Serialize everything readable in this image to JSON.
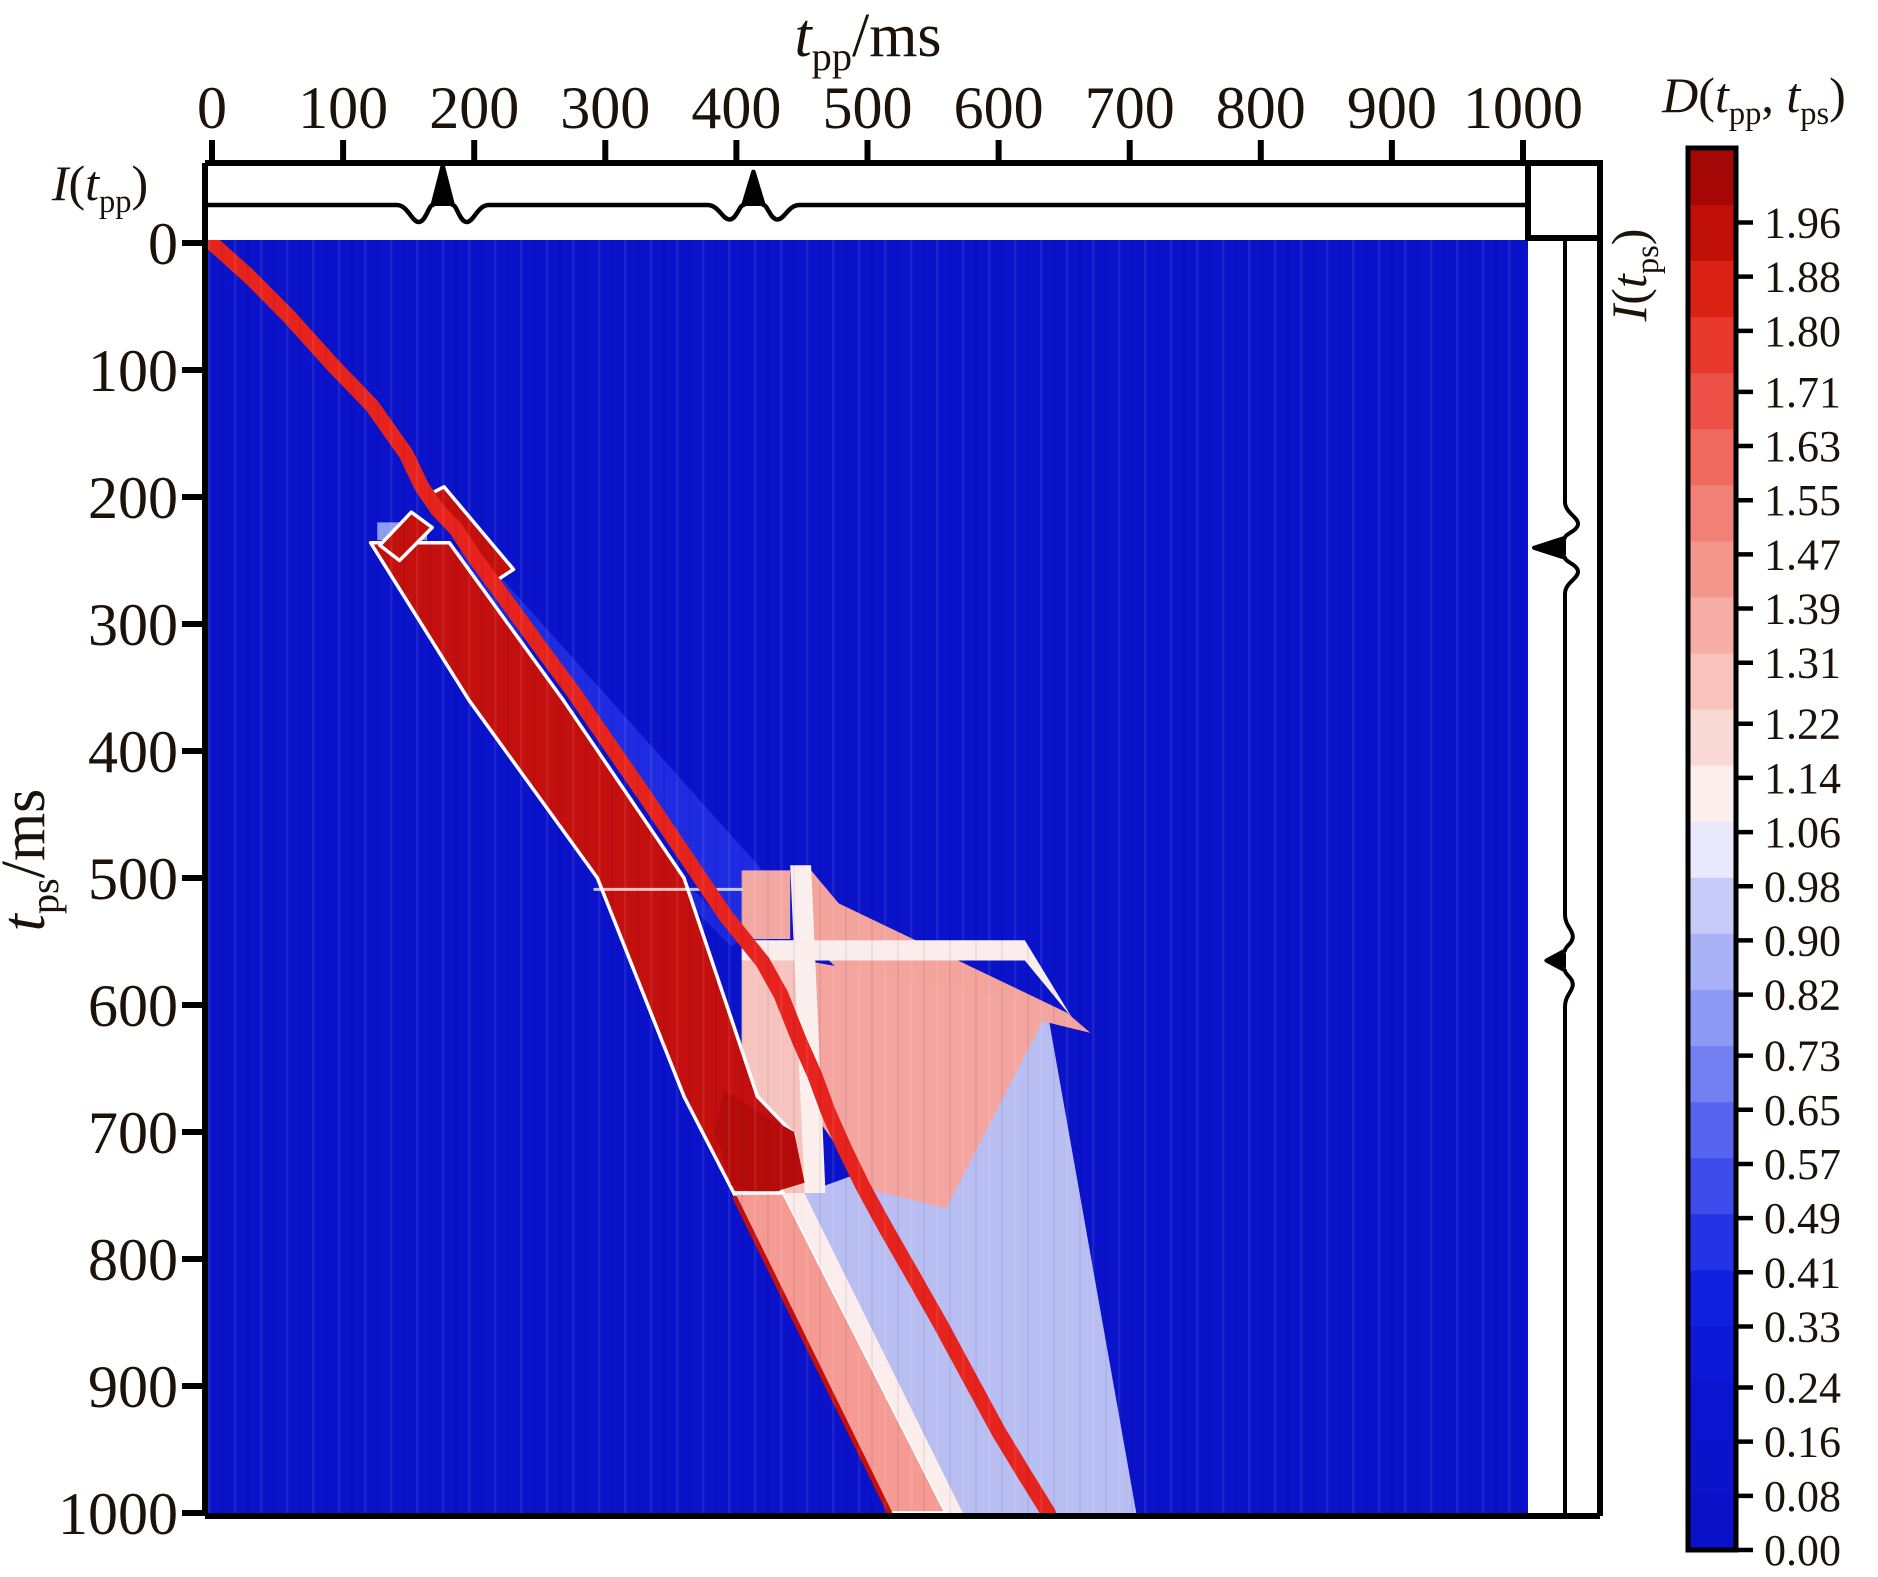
{
  "labels": {
    "x_title": {
      "var": "t",
      "sub": "pp",
      "unit": "/ms"
    },
    "y_title": {
      "var": "t",
      "sub": "ps",
      "unit": "/ms"
    },
    "top_trace": {
      "fn": "I",
      "open": "(",
      "var": "t",
      "sub": "pp",
      "close": ")"
    },
    "right_trace": {
      "fn": "I",
      "open": "(",
      "var": "t",
      "sub": "ps",
      "close": ")"
    },
    "colorbar_title": {
      "fn": "D",
      "open": "(",
      "var1": "t",
      "sub1": "pp",
      "sep": ", ",
      "var2": "t",
      "sub2": "ps",
      "close": ")"
    }
  },
  "colorbar": {
    "tick_labels_top_to_bottom": [
      "1.96",
      "1.88",
      "1.80",
      "1.71",
      "1.63",
      "1.55",
      "1.47",
      "1.39",
      "1.31",
      "1.22",
      "1.14",
      "1.06",
      "0.98",
      "0.90",
      "0.82",
      "0.73",
      "0.65",
      "0.57",
      "0.49",
      "0.41",
      "0.33",
      "0.24",
      "0.16",
      "0.08",
      "0.00"
    ],
    "value_max": 2.07,
    "segment_colors_bottom_to_top": [
      "#0A11C6",
      "#0A12CA",
      "#0B14CF",
      "#0C18D6",
      "#111FDE",
      "#2433E6",
      "#3D4BEB",
      "#5864EF",
      "#7380F2",
      "#8E99F4",
      "#A9B1F6",
      "#C5CAF8",
      "#E9E8FB",
      "#FBEEEC",
      "#F9D9D4",
      "#F7C3BC",
      "#F5ADA5",
      "#F3978D",
      "#F18076",
      "#EF695E",
      "#EC5046",
      "#E8372B",
      "#DB2014",
      "#C11008",
      "#A50606"
    ]
  },
  "chart_data": {
    "type": "heatmap",
    "title": "",
    "xlabel": "t_pp/ms",
    "ylabel": "t_ps/ms",
    "colorbar_label": "D(t_pp, t_ps)",
    "xlim": [
      0,
      1000
    ],
    "ylim": [
      0,
      1000
    ],
    "y_axis_inverted": true,
    "x_ticks": [
      0,
      100,
      200,
      300,
      400,
      500,
      600,
      700,
      800,
      900,
      1000
    ],
    "y_ticks": [
      0,
      100,
      200,
      300,
      400,
      500,
      600,
      700,
      800,
      900,
      1000
    ],
    "colorbar_ticks": [
      0.0,
      0.08,
      0.16,
      0.24,
      0.33,
      0.41,
      0.49,
      0.57,
      0.65,
      0.73,
      0.82,
      0.9,
      0.98,
      1.06,
      1.14,
      1.22,
      1.31,
      1.39,
      1.47,
      1.55,
      1.63,
      1.71,
      1.8,
      1.88,
      1.96
    ],
    "background_distance_value": 0.12,
    "heatmap_base_color": "#0A13C9",
    "path_color": "#E6231C",
    "band_color": "#C30F0E",
    "pp_wavelet_events_ms": [
      176,
      413
    ],
    "ps_wavelet_events_ms": [
      240,
      565
    ],
    "top_trace_events": [
      {
        "t_ms": 176,
        "amp": 1.0
      },
      {
        "t_ms": 413,
        "amp": 0.85
      }
    ],
    "right_trace_events": [
      {
        "t_ms": 240,
        "amp": 1.0
      },
      {
        "t_ms": 565,
        "amp": 0.6
      }
    ],
    "warping_path_tpp_tps": [
      [
        0,
        0
      ],
      [
        28,
        26
      ],
      [
        58,
        57
      ],
      [
        92,
        96
      ],
      [
        122,
        128
      ],
      [
        148,
        166
      ],
      [
        160,
        192
      ],
      [
        172,
        210
      ],
      [
        186,
        225
      ],
      [
        200,
        247
      ],
      [
        222,
        278
      ],
      [
        248,
        315
      ],
      [
        276,
        354
      ],
      [
        304,
        396
      ],
      [
        332,
        438
      ],
      [
        362,
        484
      ],
      [
        392,
        530
      ],
      [
        406,
        548
      ],
      [
        420,
        566
      ],
      [
        434,
        592
      ],
      [
        448,
        628
      ],
      [
        460,
        656
      ],
      [
        470,
        684
      ],
      [
        482,
        712
      ],
      [
        496,
        742
      ],
      [
        514,
        776
      ],
      [
        534,
        812
      ],
      [
        556,
        852
      ],
      [
        578,
        894
      ],
      [
        600,
        936
      ],
      [
        620,
        970
      ],
      [
        632,
        990
      ],
      [
        638,
        1000
      ]
    ],
    "regions": [
      {
        "name": "medium-blue-wedge",
        "color": "#1E2BE0",
        "points": [
          [
            188,
            226
          ],
          [
            425,
            500
          ],
          [
            425,
            565
          ],
          [
            404,
            546
          ],
          [
            330,
            438
          ],
          [
            256,
            328
          ]
        ]
      },
      {
        "name": "medium-blue-sliver",
        "color": "#1B27DD",
        "points": [
          [
            196,
            240
          ],
          [
            265,
            360
          ],
          [
            360,
            502
          ],
          [
            404,
            548
          ],
          [
            396,
            554
          ],
          [
            350,
            506
          ],
          [
            256,
            366
          ],
          [
            186,
            244
          ]
        ]
      },
      {
        "name": "lavender-band",
        "color": "#B9BEF2",
        "points": [
          [
            636,
            598
          ],
          [
            705,
            1000
          ],
          [
            573,
            1000
          ],
          [
            452,
            748
          ],
          [
            500,
            730
          ],
          [
            560,
            758
          ]
        ]
      },
      {
        "name": "cross-pink-left",
        "color": "#F2A8A2",
        "points": [
          [
            404,
            494
          ],
          [
            441,
            494
          ],
          [
            441,
            548
          ],
          [
            404,
            548
          ]
        ]
      },
      {
        "name": "cross-pink-fan",
        "color": "#F3A49D",
        "points": [
          [
            457,
            494
          ],
          [
            478,
            520
          ],
          [
            652,
            606
          ],
          [
            670,
            622
          ],
          [
            480,
            574
          ],
          [
            457,
            552
          ]
        ]
      },
      {
        "name": "pink-left-lower",
        "color": "#F7C3BE",
        "points": [
          [
            404,
            565
          ],
          [
            452,
            565
          ],
          [
            462,
            748
          ],
          [
            434,
            748
          ],
          [
            404,
            690
          ]
        ]
      },
      {
        "name": "pink-right-of-path",
        "color": "#F4A59F",
        "points": [
          [
            452,
            565
          ],
          [
            640,
            600
          ],
          [
            560,
            760
          ],
          [
            500,
            745
          ],
          [
            462,
            690
          ]
        ]
      },
      {
        "name": "cross-vert-white",
        "color": "#FBEFED",
        "points": [
          [
            441,
            490
          ],
          [
            457,
            490
          ],
          [
            468,
            748
          ],
          [
            452,
            748
          ]
        ]
      },
      {
        "name": "cross-horiz-white",
        "color": "#FAEDEC",
        "points": [
          [
            404,
            549
          ],
          [
            620,
            549
          ],
          [
            656,
            610
          ],
          [
            620,
            565
          ],
          [
            404,
            565
          ]
        ]
      },
      {
        "name": "light-blue-smudge",
        "color": "#8E9CEF",
        "points": [
          [
            126,
            220
          ],
          [
            164,
            220
          ],
          [
            164,
            234
          ],
          [
            126,
            234
          ]
        ]
      },
      {
        "name": "dark-red-band",
        "color": "#C30F0E",
        "stroke": "#FFFFFF",
        "points": [
          [
            121,
            236
          ],
          [
            181,
            236
          ],
          [
            268,
            360
          ],
          [
            360,
            500
          ],
          [
            416,
            672
          ],
          [
            444,
            702
          ],
          [
            434,
            748
          ],
          [
            398,
            748
          ],
          [
            360,
            672
          ],
          [
            294,
            500
          ],
          [
            196,
            360
          ]
        ]
      },
      {
        "name": "dark-red-blob",
        "color": "#B50C0B",
        "points": [
          [
            390,
            668
          ],
          [
            444,
            700
          ],
          [
            452,
            740
          ],
          [
            420,
            750
          ],
          [
            396,
            742
          ],
          [
            384,
            700
          ]
        ]
      },
      {
        "name": "salmon-band-lower",
        "color": "#F59B94",
        "stroke": "#FFFFFF",
        "points": [
          [
            398,
            748
          ],
          [
            436,
            748
          ],
          [
            560,
            1000
          ],
          [
            517,
            1000
          ]
        ]
      },
      {
        "name": "white-stripe-lower",
        "color": "#FBEDEB",
        "points": [
          [
            436,
            748
          ],
          [
            452,
            748
          ],
          [
            573,
            1000
          ],
          [
            560,
            1000
          ]
        ]
      },
      {
        "name": "bowtie-left-wing",
        "color": "#C30F0E",
        "stroke": "#FFFFFF",
        "points": [
          [
            128,
            238
          ],
          [
            152,
            212
          ],
          [
            168,
            224
          ],
          [
            143,
            250
          ]
        ]
      },
      {
        "name": "bowtie-cross-bar",
        "color": "#C30F0E",
        "stroke": "#FFFFFF",
        "points": [
          [
            162,
            200
          ],
          [
            177,
            192
          ],
          [
            230,
            257
          ],
          [
            215,
            267
          ]
        ]
      }
    ],
    "accent_lines": [
      {
        "name": "dark-red-edge-line",
        "color": "#C30F0E",
        "width": 5,
        "points": [
          [
            399,
            752
          ],
          [
            517,
            1000
          ]
        ]
      },
      {
        "name": "white-streak-left-of-cross",
        "color": "rgba(255,255,255,0.75)",
        "width": 3,
        "points": [
          [
            292,
            509
          ],
          [
            404,
            509
          ]
        ]
      }
    ]
  }
}
